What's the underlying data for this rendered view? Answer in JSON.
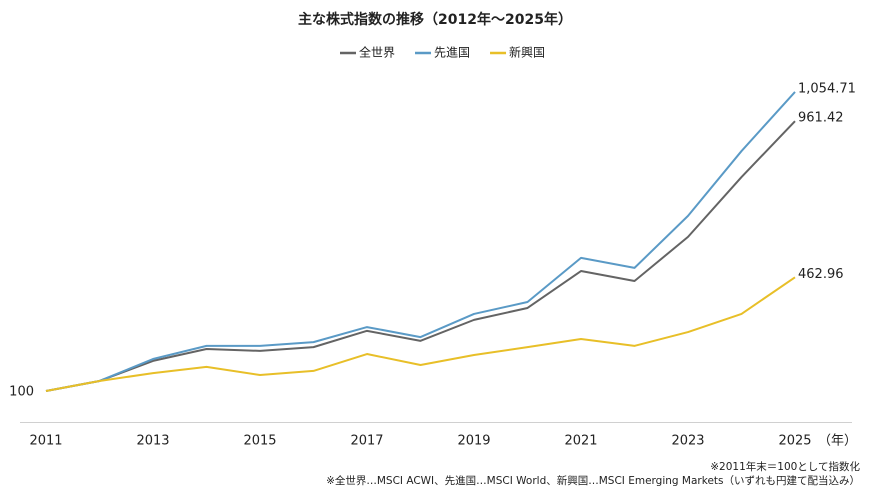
{
  "chart_data": {
    "type": "line",
    "title": "主な株式指数の推移（2012年～2025年）",
    "x": [
      2011,
      2012,
      2013,
      2014,
      2015,
      2016,
      2017,
      2018,
      2019,
      2020,
      2021,
      2022,
      2023,
      2024,
      2025
    ],
    "xlim": [
      2011,
      2025
    ],
    "xticks": [
      2011,
      2013,
      2015,
      2017,
      2019,
      2021,
      2023,
      2025
    ],
    "x_unit": "（年）",
    "ylim": [
      0,
      1150
    ],
    "series": [
      {
        "name": "全世界",
        "color": "#646464",
        "values": [
          100,
          132,
          196,
          234,
          228,
          240,
          292,
          260,
          327,
          365,
          483,
          451,
          592,
          783,
          961.42
        ],
        "value_labels": [
          "100",
          null,
          null,
          null,
          null,
          null,
          null,
          null,
          null,
          null,
          null,
          null,
          null,
          null,
          "961.42"
        ]
      },
      {
        "name": "先進国",
        "color": "#5a9ac6",
        "values": [
          100,
          132,
          202,
          244,
          244,
          256,
          304,
          272,
          346,
          384,
          525,
          493,
          659,
          866,
          1054.71
        ],
        "value_labels": [
          null,
          null,
          null,
          null,
          null,
          null,
          null,
          null,
          null,
          null,
          null,
          null,
          null,
          null,
          "1,054.71"
        ]
      },
      {
        "name": "新興国",
        "color": "#e8bf28",
        "values": [
          100,
          132,
          157,
          177,
          151,
          164,
          218,
          183,
          215,
          240,
          266,
          244,
          288,
          346,
          462.96
        ],
        "value_labels": [
          null,
          null,
          null,
          null,
          null,
          null,
          null,
          null,
          null,
          null,
          null,
          null,
          null,
          null,
          "462.96"
        ]
      }
    ],
    "notes": [
      "※2011年末＝100として指数化",
      "※全世界…MSCI ACWI、先進国…MSCI World、新興国…MSCI Emerging Markets（いずれも円建て配当込み）"
    ]
  }
}
